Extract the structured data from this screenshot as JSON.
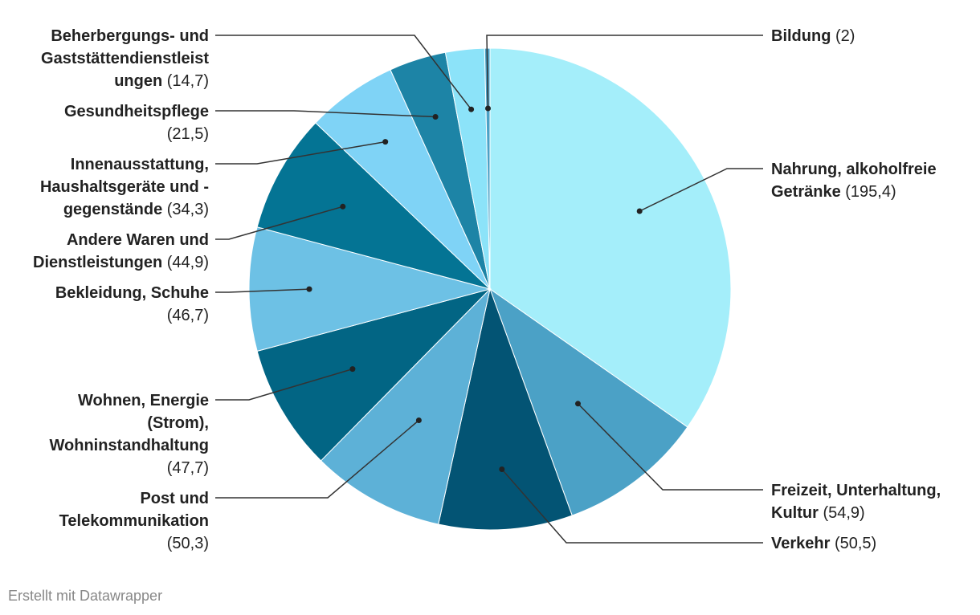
{
  "credit": "Erstellt mit Datawrapper",
  "chart_data": {
    "type": "pie",
    "slices": [
      {
        "name": "Nahrung, alkoholfreie Getränke",
        "value_label": "(195,4)",
        "value": 195.4,
        "color": "#a4eefa",
        "label_lines": [
          [
            "Nahrung, alkoholfreie",
            ""
          ],
          [
            "Getränke",
            "(195,4)"
          ]
        ]
      },
      {
        "name": "Freizeit, Unterhaltung, Kultur",
        "value_label": "(54,9)",
        "value": 54.9,
        "color": "#4ba1c6",
        "label_lines": [
          [
            "Freizeit, Unterhaltung,",
            ""
          ],
          [
            "Kultur",
            "(54,9)"
          ]
        ]
      },
      {
        "name": "Verkehr",
        "value_label": "(50,5)",
        "value": 50.5,
        "color": "#035474",
        "label_lines": [
          [
            "Verkehr",
            "(50,5)"
          ]
        ]
      },
      {
        "name": "Post und Telekommunikation",
        "value_label": "(50,3)",
        "value": 50.3,
        "color": "#5db1d7",
        "label_lines": [
          [
            "Post und",
            ""
          ],
          [
            "Telekommunikation",
            ""
          ],
          [
            "",
            "(50,3)"
          ]
        ]
      },
      {
        "name": "Wohnen, Energie (Strom), Wohninstandhaltung",
        "value_label": "(47,7)",
        "value": 47.7,
        "color": "#026584",
        "label_lines": [
          [
            "Wohnen, Energie",
            ""
          ],
          [
            "(Strom),",
            ""
          ],
          [
            "Wohninstandhaltung",
            ""
          ],
          [
            "",
            "(47,7)"
          ]
        ]
      },
      {
        "name": "Bekleidung, Schuhe",
        "value_label": "(46,7)",
        "value": 46.7,
        "color": "#6dc1e5",
        "label_lines": [
          [
            "Bekleidung, Schuhe",
            ""
          ],
          [
            "",
            "(46,7)"
          ]
        ]
      },
      {
        "name": "Andere Waren und Dienstleistungen",
        "value_label": "(44,9)",
        "value": 44.9,
        "color": "#047494",
        "label_lines": [
          [
            "Andere Waren und",
            ""
          ],
          [
            "Dienstleistungen",
            "(44,9)"
          ]
        ]
      },
      {
        "name": "Innenausstattung, Haushaltsgeräte und -gegenstände",
        "value_label": "(34,3)",
        "value": 34.3,
        "color": "#7fd3f6",
        "label_lines": [
          [
            "Innenausstattung,",
            ""
          ],
          [
            "Haushaltsgeräte und -",
            ""
          ],
          [
            "gegenstände",
            "(34,3)"
          ]
        ]
      },
      {
        "name": "Gesundheitspflege",
        "value_label": "(21,5)",
        "value": 21.5,
        "color": "#1d84a6",
        "label_lines": [
          [
            "Gesundheitspflege",
            ""
          ],
          [
            "",
            "(21,5)"
          ]
        ]
      },
      {
        "name": "Beherbergungs- und Gaststättendienstleistungen",
        "value_label": "(14,7)",
        "value": 14.7,
        "color": "#8ce3f9",
        "label_lines": [
          [
            "Beherbergungs- und",
            ""
          ],
          [
            "Gaststättendienstleist",
            ""
          ],
          [
            "ungen",
            "(14,7)"
          ]
        ]
      },
      {
        "name": "Bildung",
        "value_label": "(2)",
        "value": 2,
        "color": "#4ba1c6",
        "label_lines": [
          [
            "Bildung",
            "(2)"
          ]
        ]
      }
    ]
  }
}
